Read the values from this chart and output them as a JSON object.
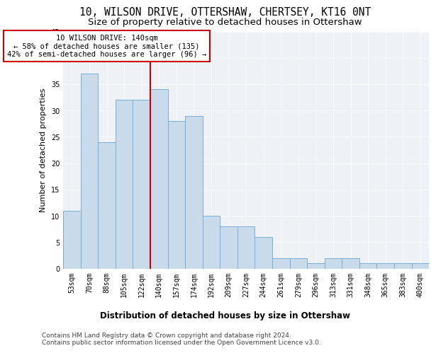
{
  "title": "10, WILSON DRIVE, OTTERSHAW, CHERTSEY, KT16 0NT",
  "subtitle": "Size of property relative to detached houses in Ottershaw",
  "xlabel": "Distribution of detached houses by size in Ottershaw",
  "ylabel": "Number of detached properties",
  "categories": [
    "53sqm",
    "70sqm",
    "88sqm",
    "105sqm",
    "122sqm",
    "140sqm",
    "157sqm",
    "174sqm",
    "192sqm",
    "209sqm",
    "227sqm",
    "244sqm",
    "261sqm",
    "279sqm",
    "296sqm",
    "313sqm",
    "331sqm",
    "348sqm",
    "365sqm",
    "383sqm",
    "400sqm"
  ],
  "values": [
    11,
    37,
    24,
    32,
    32,
    34,
    28,
    29,
    10,
    8,
    8,
    6,
    2,
    2,
    1,
    2,
    2,
    1,
    1,
    1,
    1
  ],
  "bar_color": "#c9daea",
  "bar_edge_color": "#7aafd4",
  "vline_color": "#cc0000",
  "annotation_text": "10 WILSON DRIVE: 140sqm\n← 58% of detached houses are smaller (135)\n42% of semi-detached houses are larger (96) →",
  "annotation_box_color": "#cc0000",
  "ylim": [
    0,
    45
  ],
  "yticks": [
    0,
    5,
    10,
    15,
    20,
    25,
    30,
    35,
    40,
    45
  ],
  "bg_color": "#eef2f7",
  "grid_color": "#ffffff",
  "footer": "Contains HM Land Registry data © Crown copyright and database right 2024.\nContains public sector information licensed under the Open Government Licence v3.0.",
  "title_fontsize": 10.5,
  "subtitle_fontsize": 9.5,
  "xlabel_fontsize": 8.5,
  "ylabel_fontsize": 8,
  "tick_fontsize": 7,
  "annotation_fontsize": 7.5,
  "footer_fontsize": 6.5
}
